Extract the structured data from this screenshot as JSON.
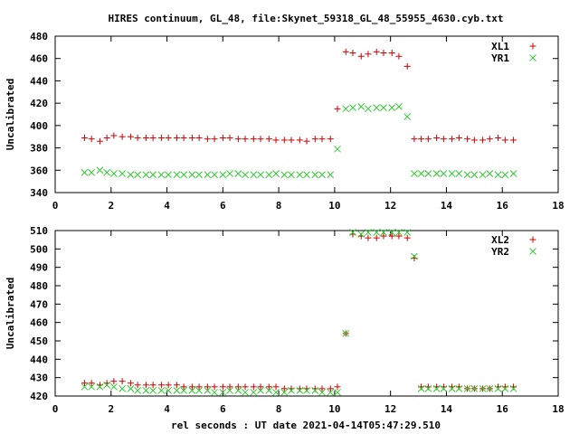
{
  "title": "HIRES continuum, GL_48, file:Skynet_59318_GL_48_55955_4630.cyb.txt",
  "xlabel": "rel seconds : UT date 2021-04-14T05:47:29.510",
  "colors": {
    "red": "#cc0000",
    "green": "#33cc33",
    "axis": "#000000"
  },
  "chart_data": [
    {
      "type": "scatter",
      "title": "HIRES continuum, GL_48, file:Skynet_59318_GL_48_55955_4630.cyb.txt",
      "ylabel": "Uncalibrated",
      "xlim": [
        0,
        18
      ],
      "ylim": [
        340,
        480
      ],
      "xticks": [
        0,
        2,
        4,
        6,
        8,
        10,
        12,
        14,
        16,
        18
      ],
      "yticks": [
        340,
        360,
        380,
        400,
        420,
        440,
        460,
        480
      ],
      "legend": "top-right",
      "grid": false,
      "series": [
        {
          "name": "XL1",
          "marker": "plus",
          "color": "#cc0000",
          "x": [
            1.05,
            1.3,
            1.6,
            1.85,
            2.1,
            2.4,
            2.7,
            2.95,
            3.25,
            3.5,
            3.8,
            4.05,
            4.35,
            4.6,
            4.9,
            5.15,
            5.45,
            5.7,
            6.0,
            6.25,
            6.55,
            6.8,
            7.1,
            7.35,
            7.65,
            7.9,
            8.2,
            8.45,
            8.75,
            9.0,
            9.3,
            9.55,
            9.85,
            10.1,
            10.4,
            10.65,
            10.95,
            11.2,
            11.5,
            11.75,
            12.05,
            12.3,
            12.6,
            12.85,
            13.1,
            13.35,
            13.65,
            13.9,
            14.2,
            14.45,
            14.75,
            15.0,
            15.3,
            15.55,
            15.85,
            16.1,
            16.4
          ],
          "y": [
            389,
            388,
            386,
            389,
            391,
            390,
            390,
            389,
            389,
            389,
            389,
            389,
            389,
            389,
            389,
            389,
            388,
            388,
            389,
            389,
            388,
            388,
            388,
            388,
            388,
            387,
            387,
            387,
            387,
            386,
            388,
            388,
            388,
            415,
            466,
            465,
            462,
            464,
            466,
            465,
            465,
            462,
            453,
            388,
            388,
            388,
            389,
            388,
            388,
            389,
            388,
            387,
            387,
            388,
            389,
            387,
            387
          ]
        },
        {
          "name": "YR1",
          "marker": "cross",
          "color": "#33cc33",
          "x": [
            1.05,
            1.3,
            1.6,
            1.85,
            2.1,
            2.4,
            2.7,
            2.95,
            3.25,
            3.5,
            3.8,
            4.05,
            4.35,
            4.6,
            4.9,
            5.15,
            5.45,
            5.7,
            6.0,
            6.25,
            6.55,
            6.8,
            7.1,
            7.35,
            7.65,
            7.9,
            8.2,
            8.45,
            8.75,
            9.0,
            9.3,
            9.55,
            9.85,
            10.1,
            10.4,
            10.65,
            10.95,
            11.2,
            11.5,
            11.75,
            12.05,
            12.3,
            12.6,
            12.85,
            13.1,
            13.35,
            13.65,
            13.9,
            14.2,
            14.45,
            14.75,
            15.0,
            15.3,
            15.55,
            15.85,
            16.1,
            16.4
          ],
          "y": [
            358,
            358,
            360,
            358,
            357,
            357,
            356,
            356,
            356,
            356,
            356,
            356,
            356,
            356,
            356,
            356,
            356,
            356,
            356,
            357,
            357,
            356,
            356,
            356,
            356,
            357,
            356,
            356,
            356,
            356,
            356,
            356,
            356,
            379,
            415,
            416,
            417,
            415,
            416,
            416,
            416,
            417,
            408,
            357,
            357,
            357,
            357,
            357,
            357,
            357,
            356,
            356,
            356,
            357,
            356,
            356,
            357
          ]
        }
      ]
    },
    {
      "type": "scatter",
      "ylabel": "Uncalibrated",
      "xlim": [
        0,
        18
      ],
      "ylim": [
        420,
        510
      ],
      "xticks": [
        0,
        2,
        4,
        6,
        8,
        10,
        12,
        14,
        16,
        18
      ],
      "yticks": [
        420,
        430,
        440,
        450,
        460,
        470,
        480,
        490,
        500,
        510
      ],
      "legend": "top-right",
      "grid": false,
      "series": [
        {
          "name": "XL2",
          "marker": "plus",
          "color": "#cc0000",
          "x": [
            1.05,
            1.3,
            1.6,
            1.85,
            2.1,
            2.4,
            2.7,
            2.95,
            3.25,
            3.5,
            3.8,
            4.05,
            4.35,
            4.6,
            4.9,
            5.15,
            5.45,
            5.7,
            6.0,
            6.25,
            6.55,
            6.8,
            7.1,
            7.35,
            7.65,
            7.9,
            8.2,
            8.45,
            8.75,
            9.0,
            9.3,
            9.55,
            9.85,
            10.1,
            10.4,
            10.65,
            10.95,
            11.2,
            11.5,
            11.75,
            12.05,
            12.3,
            12.6,
            12.85,
            13.1,
            13.35,
            13.65,
            13.9,
            14.2,
            14.45,
            14.75,
            15.0,
            15.3,
            15.55,
            15.85,
            16.1,
            16.4
          ],
          "y": [
            427,
            427,
            426,
            427,
            428,
            428,
            427,
            426,
            426,
            426,
            426,
            426,
            426,
            425,
            425,
            425,
            425,
            425,
            425,
            425,
            425,
            425,
            425,
            425,
            425,
            425,
            424,
            424,
            424,
            424,
            424,
            424,
            424,
            425,
            454,
            508,
            507,
            506,
            506,
            507,
            507,
            507,
            506,
            495,
            425,
            425,
            425,
            425,
            425,
            425,
            424,
            424,
            424,
            424,
            425,
            425,
            425
          ]
        },
        {
          "name": "YR2",
          "marker": "cross",
          "color": "#33cc33",
          "x": [
            1.05,
            1.3,
            1.6,
            1.85,
            2.1,
            2.4,
            2.7,
            2.95,
            3.25,
            3.5,
            3.8,
            4.05,
            4.35,
            4.6,
            4.9,
            5.15,
            5.45,
            5.7,
            6.0,
            6.25,
            6.55,
            6.8,
            7.1,
            7.35,
            7.65,
            7.9,
            8.2,
            8.45,
            8.75,
            9.0,
            9.3,
            9.55,
            9.85,
            10.1,
            10.4,
            10.65,
            10.95,
            11.2,
            11.5,
            11.75,
            12.05,
            12.3,
            12.6,
            12.85,
            13.1,
            13.35,
            13.65,
            13.9,
            14.2,
            14.45,
            14.75,
            15.0,
            15.3,
            15.55,
            15.85,
            16.1,
            16.4
          ],
          "y": [
            425,
            425,
            425,
            426,
            425,
            424,
            424,
            423,
            423,
            423,
            423,
            423,
            423,
            423,
            423,
            423,
            423,
            422,
            422,
            423,
            423,
            422,
            422,
            423,
            423,
            422,
            422,
            423,
            423,
            423,
            423,
            422,
            422,
            422,
            454,
            509,
            508,
            509,
            509,
            509,
            509,
            509,
            509,
            496,
            424,
            424,
            424,
            424,
            424,
            424,
            424,
            424,
            424,
            424,
            424,
            424,
            424
          ]
        }
      ]
    }
  ]
}
